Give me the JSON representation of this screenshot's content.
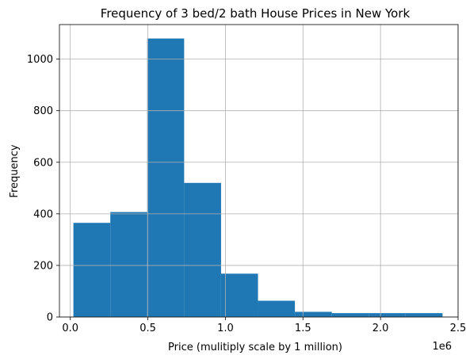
{
  "chart_data": {
    "type": "bar",
    "title": "Frequency of 3 bed/2 bath House Prices in New York",
    "xlabel": "Price (mulitiply scale by 1 million)",
    "ylabel": "Frequency",
    "x_offset_label": "1e6",
    "xlim": [
      -0.07,
      2.5
    ],
    "ylim": [
      0,
      1134
    ],
    "x_ticks": [
      0.0,
      0.5,
      1.0,
      1.5,
      2.0,
      2.5
    ],
    "x_tick_labels": [
      "0.0",
      "0.5",
      "1.0",
      "1.5",
      "2.0",
      "2.5"
    ],
    "y_ticks": [
      0,
      200,
      400,
      600,
      800,
      1000
    ],
    "y_tick_labels": [
      "0",
      "200",
      "400",
      "600",
      "800",
      "1000"
    ],
    "grid": true,
    "bar_color": "#1f77b4",
    "bins": [
      {
        "start": 0.02,
        "end": 0.258,
        "value": 365
      },
      {
        "start": 0.258,
        "end": 0.496,
        "value": 407
      },
      {
        "start": 0.496,
        "end": 0.734,
        "value": 1080
      },
      {
        "start": 0.734,
        "end": 0.972,
        "value": 520
      },
      {
        "start": 0.972,
        "end": 1.21,
        "value": 168
      },
      {
        "start": 1.21,
        "end": 1.448,
        "value": 63
      },
      {
        "start": 1.448,
        "end": 1.686,
        "value": 20
      },
      {
        "start": 1.686,
        "end": 1.924,
        "value": 15
      },
      {
        "start": 1.924,
        "end": 2.162,
        "value": 15
      },
      {
        "start": 2.162,
        "end": 2.4,
        "value": 15
      }
    ]
  }
}
